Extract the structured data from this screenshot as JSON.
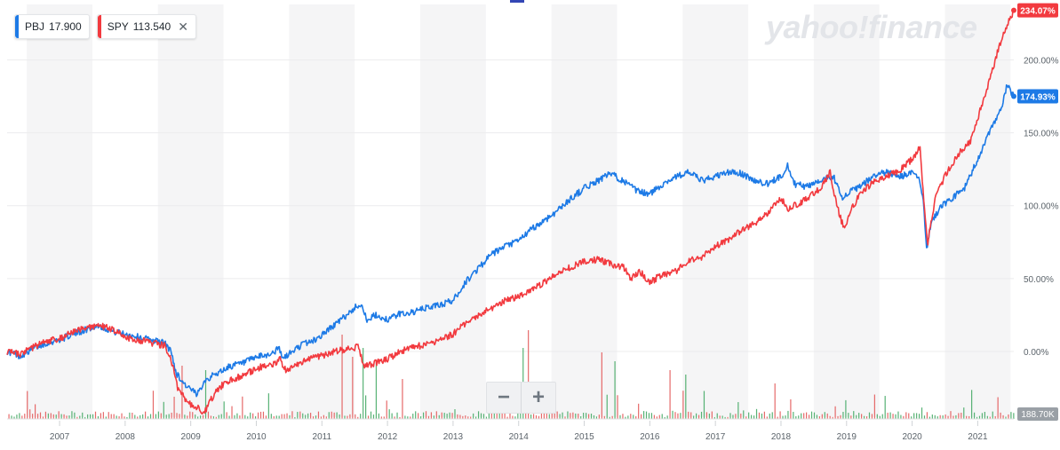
{
  "legend": [
    {
      "symbol": "PBJ",
      "value": "17.900",
      "color": "#1d7ae6"
    },
    {
      "symbol": "SPY",
      "value": "113.540",
      "color": "#f23a3f",
      "close": "✕"
    }
  ],
  "watermark": "yahoo!finance",
  "zoom": {
    "minus": "−",
    "plus": "+"
  },
  "volume_label": "188.70K",
  "chart_data": {
    "type": "line",
    "x_tick_labels": [
      "2007",
      "2008",
      "2009",
      "2010",
      "2011",
      "2012",
      "2013",
      "2014",
      "2015",
      "2016",
      "2017",
      "2018",
      "2019",
      "2020",
      "2021"
    ],
    "y_tick_labels": [
      "200.00%",
      "150.00%",
      "100.00%",
      "50.00%",
      "0.00%"
    ],
    "y_ticks": [
      200,
      150,
      100,
      50,
      0
    ],
    "ylim": [
      -45,
      238
    ],
    "xlim": [
      2006.2,
      2021.55
    ],
    "series": [
      {
        "name": "PBJ",
        "color": "#1d7ae6",
        "last_label": "174.93%",
        "points": [
          [
            2006.2,
            0
          ],
          [
            2006.4,
            -3
          ],
          [
            2006.6,
            2
          ],
          [
            2006.8,
            6
          ],
          [
            2007.0,
            8
          ],
          [
            2007.2,
            12
          ],
          [
            2007.4,
            15
          ],
          [
            2007.6,
            18
          ],
          [
            2007.8,
            14
          ],
          [
            2008.0,
            12
          ],
          [
            2008.2,
            10
          ],
          [
            2008.4,
            8
          ],
          [
            2008.6,
            6
          ],
          [
            2008.7,
            0
          ],
          [
            2008.78,
            -15
          ],
          [
            2008.9,
            -22
          ],
          [
            2009.0,
            -26
          ],
          [
            2009.1,
            -30
          ],
          [
            2009.2,
            -20
          ],
          [
            2009.4,
            -15
          ],
          [
            2009.6,
            -10
          ],
          [
            2009.8,
            -8
          ],
          [
            2010.0,
            -4
          ],
          [
            2010.2,
            -2
          ],
          [
            2010.35,
            2
          ],
          [
            2010.4,
            -5
          ],
          [
            2010.55,
            0
          ],
          [
            2010.7,
            5
          ],
          [
            2010.9,
            8
          ],
          [
            2011.1,
            15
          ],
          [
            2011.3,
            22
          ],
          [
            2011.5,
            30
          ],
          [
            2011.6,
            33
          ],
          [
            2011.7,
            20
          ],
          [
            2011.8,
            25
          ],
          [
            2012.0,
            22
          ],
          [
            2012.2,
            26
          ],
          [
            2012.4,
            27
          ],
          [
            2012.6,
            30
          ],
          [
            2012.8,
            32
          ],
          [
            2013.0,
            35
          ],
          [
            2013.2,
            48
          ],
          [
            2013.4,
            58
          ],
          [
            2013.6,
            67
          ],
          [
            2013.8,
            72
          ],
          [
            2014.0,
            76
          ],
          [
            2014.2,
            84
          ],
          [
            2014.4,
            90
          ],
          [
            2014.6,
            97
          ],
          [
            2014.8,
            105
          ],
          [
            2015.0,
            112
          ],
          [
            2015.2,
            117
          ],
          [
            2015.4,
            122
          ],
          [
            2015.6,
            117
          ],
          [
            2015.8,
            110
          ],
          [
            2016.0,
            108
          ],
          [
            2016.2,
            115
          ],
          [
            2016.4,
            120
          ],
          [
            2016.6,
            123
          ],
          [
            2016.8,
            117
          ],
          [
            2017.0,
            120
          ],
          [
            2017.2,
            123
          ],
          [
            2017.4,
            122
          ],
          [
            2017.6,
            117
          ],
          [
            2017.8,
            115
          ],
          [
            2018.0,
            120
          ],
          [
            2018.1,
            128
          ],
          [
            2018.2,
            115
          ],
          [
            2018.4,
            113
          ],
          [
            2018.6,
            118
          ],
          [
            2018.8,
            120
          ],
          [
            2018.95,
            105
          ],
          [
            2019.0,
            108
          ],
          [
            2019.2,
            113
          ],
          [
            2019.4,
            120
          ],
          [
            2019.6,
            123
          ],
          [
            2019.8,
            120
          ],
          [
            2020.0,
            122
          ],
          [
            2020.1,
            120
          ],
          [
            2020.17,
            105
          ],
          [
            2020.22,
            70
          ],
          [
            2020.3,
            90
          ],
          [
            2020.45,
            100
          ],
          [
            2020.6,
            105
          ],
          [
            2020.8,
            112
          ],
          [
            2021.0,
            132
          ],
          [
            2021.2,
            152
          ],
          [
            2021.35,
            165
          ],
          [
            2021.45,
            183
          ],
          [
            2021.55,
            175
          ]
        ]
      },
      {
        "name": "SPY",
        "color": "#f23a3f",
        "last_label": "234.07%",
        "points": [
          [
            2006.2,
            0
          ],
          [
            2006.4,
            -2
          ],
          [
            2006.6,
            3
          ],
          [
            2006.8,
            7
          ],
          [
            2007.0,
            9
          ],
          [
            2007.2,
            13
          ],
          [
            2007.4,
            16
          ],
          [
            2007.6,
            18
          ],
          [
            2007.8,
            15
          ],
          [
            2008.0,
            10
          ],
          [
            2008.2,
            8
          ],
          [
            2008.4,
            6
          ],
          [
            2008.6,
            4
          ],
          [
            2008.7,
            -5
          ],
          [
            2008.8,
            -25
          ],
          [
            2008.95,
            -35
          ],
          [
            2009.1,
            -38
          ],
          [
            2009.2,
            -42
          ],
          [
            2009.35,
            -30
          ],
          [
            2009.5,
            -22
          ],
          [
            2009.7,
            -18
          ],
          [
            2009.9,
            -14
          ],
          [
            2010.1,
            -10
          ],
          [
            2010.3,
            -8
          ],
          [
            2010.35,
            -4
          ],
          [
            2010.45,
            -13
          ],
          [
            2010.6,
            -10
          ],
          [
            2010.8,
            -5
          ],
          [
            2011.0,
            -3
          ],
          [
            2011.2,
            0
          ],
          [
            2011.4,
            2
          ],
          [
            2011.55,
            3
          ],
          [
            2011.65,
            -10
          ],
          [
            2011.8,
            -8
          ],
          [
            2012.0,
            -5
          ],
          [
            2012.2,
            0
          ],
          [
            2012.4,
            3
          ],
          [
            2012.6,
            5
          ],
          [
            2012.8,
            8
          ],
          [
            2013.0,
            12
          ],
          [
            2013.2,
            20
          ],
          [
            2013.4,
            25
          ],
          [
            2013.6,
            30
          ],
          [
            2013.8,
            35
          ],
          [
            2014.0,
            38
          ],
          [
            2014.2,
            42
          ],
          [
            2014.4,
            48
          ],
          [
            2014.6,
            54
          ],
          [
            2014.8,
            58
          ],
          [
            2015.0,
            62
          ],
          [
            2015.2,
            63
          ],
          [
            2015.4,
            60
          ],
          [
            2015.6,
            58
          ],
          [
            2015.7,
            50
          ],
          [
            2015.85,
            55
          ],
          [
            2016.0,
            47
          ],
          [
            2016.15,
            52
          ],
          [
            2016.4,
            55
          ],
          [
            2016.6,
            63
          ],
          [
            2016.8,
            65
          ],
          [
            2017.0,
            72
          ],
          [
            2017.2,
            77
          ],
          [
            2017.4,
            83
          ],
          [
            2017.6,
            88
          ],
          [
            2017.8,
            95
          ],
          [
            2018.0,
            105
          ],
          [
            2018.1,
            98
          ],
          [
            2018.2,
            100
          ],
          [
            2018.4,
            105
          ],
          [
            2018.6,
            112
          ],
          [
            2018.75,
            123
          ],
          [
            2018.85,
            100
          ],
          [
            2018.97,
            83
          ],
          [
            2019.05,
            95
          ],
          [
            2019.2,
            108
          ],
          [
            2019.4,
            116
          ],
          [
            2019.6,
            120
          ],
          [
            2019.8,
            124
          ],
          [
            2020.0,
            132
          ],
          [
            2020.12,
            140
          ],
          [
            2020.2,
            90
          ],
          [
            2020.24,
            75
          ],
          [
            2020.35,
            105
          ],
          [
            2020.5,
            120
          ],
          [
            2020.7,
            135
          ],
          [
            2020.9,
            145
          ],
          [
            2021.0,
            160
          ],
          [
            2021.15,
            182
          ],
          [
            2021.3,
            205
          ],
          [
            2021.45,
            224
          ],
          [
            2021.55,
            234
          ]
        ]
      }
    ]
  }
}
